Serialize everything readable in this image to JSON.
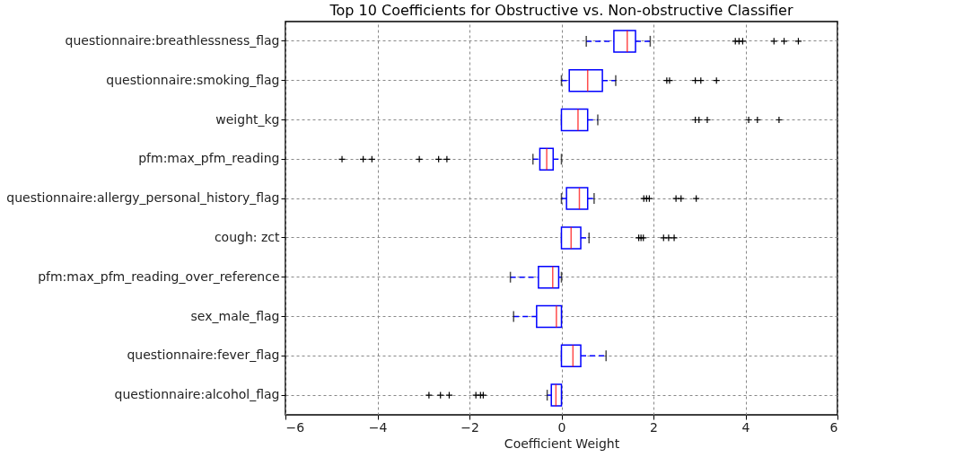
{
  "chart_data": {
    "type": "box",
    "title": "Top 10 Coefficients for Obstructive vs. Non-obstructive Classifier",
    "xlabel": "Coefficient Weight",
    "orientation": "horizontal",
    "grid": true,
    "marker": "cross",
    "categories": [
      "questionnaire:breathlessness_flag",
      "questionnaire:smoking_flag",
      "weight_kg",
      "pfm:max_pfm_reading",
      "questionnaire:allergy_personal_history_flag",
      "cough: zct",
      "pfm:max_pfm_reading_over_reference",
      "sex_male_flag",
      "questionnaire:fever_flag",
      "questionnaire:alcohol_flag"
    ],
    "xlim": [
      -6,
      6
    ],
    "xticks": [
      -6,
      -4,
      -2,
      0,
      2,
      4,
      6
    ],
    "boxes": [
      {
        "low": 0.54,
        "q1": 1.14,
        "median": 1.43,
        "q3": 1.61,
        "high": 1.93,
        "outliers": [
          3.78,
          3.86,
          3.94,
          4.62,
          4.84,
          5.15
        ]
      },
      {
        "low": 0,
        "q1": 0.17,
        "median": 0.57,
        "q3": 0.89,
        "high": 1.18,
        "outliers": [
          2.29,
          2.35,
          2.91,
          3.03,
          3.37
        ]
      },
      {
        "low": 0,
        "q1": 0,
        "median": 0.36,
        "q3": 0.57,
        "high": 0.79,
        "outliers": [
          2.91,
          2.99,
          3.17,
          4.07,
          4.26,
          4.73
        ]
      },
      {
        "low": -0.62,
        "q1": -0.47,
        "median": -0.32,
        "q3": -0.18,
        "high": 0,
        "outliers": [
          -4.77,
          -4.31,
          -4.12,
          -3.09,
          -2.67,
          -2.49
        ]
      },
      {
        "low": 0,
        "q1": 0.11,
        "median": 0.39,
        "q3": 0.57,
        "high": 0.71,
        "outliers": [
          1.79,
          1.85,
          1.91,
          2.49,
          2.6,
          2.93
        ]
      },
      {
        "low": 0,
        "q1": 0,
        "median": 0.21,
        "q3": 0.42,
        "high": 0.6,
        "outliers": [
          1.68,
          1.73,
          1.78,
          2.22,
          2.33,
          2.45
        ]
      },
      {
        "low": -1.11,
        "q1": -0.5,
        "median": -0.19,
        "q3": -0.06,
        "high": 0
      },
      {
        "low": -1.04,
        "q1": -0.54,
        "median": -0.11,
        "q3": 0,
        "high": 0
      },
      {
        "low": 0,
        "q1": 0,
        "median": 0.25,
        "q3": 0.42,
        "high": 0.97
      },
      {
        "low": -0.31,
        "q1": -0.22,
        "median": -0.12,
        "q3": 0,
        "high": 0,
        "outliers": [
          -2.88,
          -2.63,
          -2.44,
          -1.86,
          -1.76,
          -1.7
        ]
      }
    ]
  }
}
